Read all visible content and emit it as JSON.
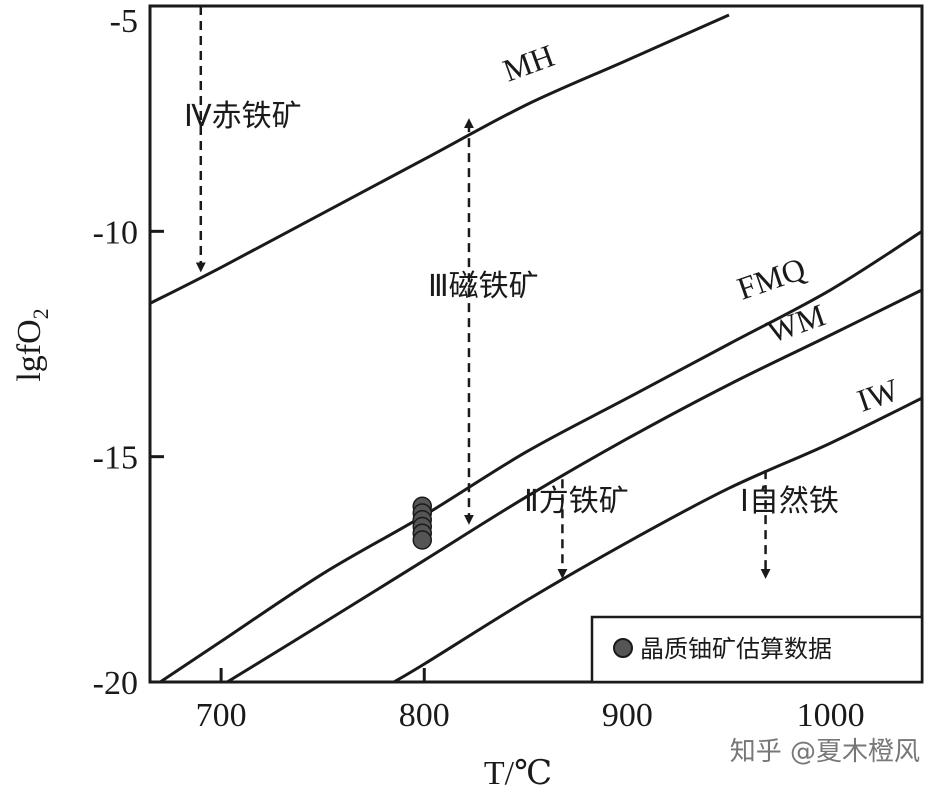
{
  "chart_data": {
    "type": "line",
    "xlabel": "T/℃",
    "ylabel_main": "lgfO",
    "ylabel_sub": "2",
    "xlim": [
      665,
      1045
    ],
    "ylim": [
      -20,
      -5
    ],
    "x_ticks": [
      700,
      800,
      900,
      1000
    ],
    "y_ticks": [
      -5,
      -10,
      -15,
      -20
    ],
    "x_tick_labels": [
      "700",
      "800",
      "900",
      "1000"
    ],
    "y_tick_labels": [
      "-5",
      "-10",
      "-15",
      "-20"
    ],
    "grid": false,
    "series": [
      {
        "name": "MH",
        "x": [
          665,
          700,
          750,
          800,
          850,
          900,
          950
        ],
        "y": [
          -11.6,
          -10.8,
          -9.6,
          -8.4,
          -7.2,
          -6.2,
          -5.2
        ]
      },
      {
        "name": "FMQ",
        "x": [
          670,
          700,
          750,
          800,
          850,
          900,
          950,
          1000,
          1045
        ],
        "y": [
          -20.0,
          -19.1,
          -17.6,
          -16.3,
          -14.9,
          -13.7,
          -12.5,
          -11.3,
          -10.0
        ]
      },
      {
        "name": "WM",
        "x": [
          703,
          750,
          800,
          850,
          900,
          950,
          1000,
          1045
        ],
        "y": [
          -20.0,
          -18.7,
          -17.3,
          -15.9,
          -14.6,
          -13.4,
          -12.3,
          -11.3
        ]
      },
      {
        "name": "IW",
        "x": [
          785,
          800,
          850,
          900,
          950,
          1000,
          1045
        ],
        "y": [
          -20.0,
          -19.6,
          -18.2,
          -16.9,
          -15.7,
          -14.7,
          -13.7
        ]
      }
    ],
    "points": {
      "name": "晶质铀矿估算数据",
      "x": [
        800,
        800,
        800,
        800,
        800,
        800
      ],
      "y": [
        -16.1,
        -16.25,
        -16.4,
        -16.55,
        -16.7,
        -16.85
      ]
    },
    "arrows": [
      {
        "x": 690,
        "y_from": -5,
        "y_to": -10.8,
        "heads": "end"
      },
      {
        "x": 822,
        "y_from": -7.6,
        "y_to": -16.4,
        "heads": "both"
      },
      {
        "x": 868,
        "y_from": -15.5,
        "y_to": -17.6,
        "heads": "end"
      },
      {
        "x": 968,
        "y_from": -15.3,
        "y_to": -17.6,
        "heads": "end"
      }
    ],
    "regions": [
      {
        "label": "Ⅳ赤铁矿",
        "x": 685,
        "y": -7.0
      },
      {
        "label": "Ⅲ磁铁矿",
        "x": 820,
        "y": -11.3
      },
      {
        "label": "Ⅱ方铁矿",
        "x": 866,
        "y": -16.1
      },
      {
        "label": "Ⅰ自然铁",
        "x": 965,
        "y": -16.1
      }
    ],
    "legend_position": "bottom-right",
    "colors": {
      "line": "#1a1a1a",
      "point": "#555555"
    }
  },
  "watermark": "知乎 @夏木橙风"
}
